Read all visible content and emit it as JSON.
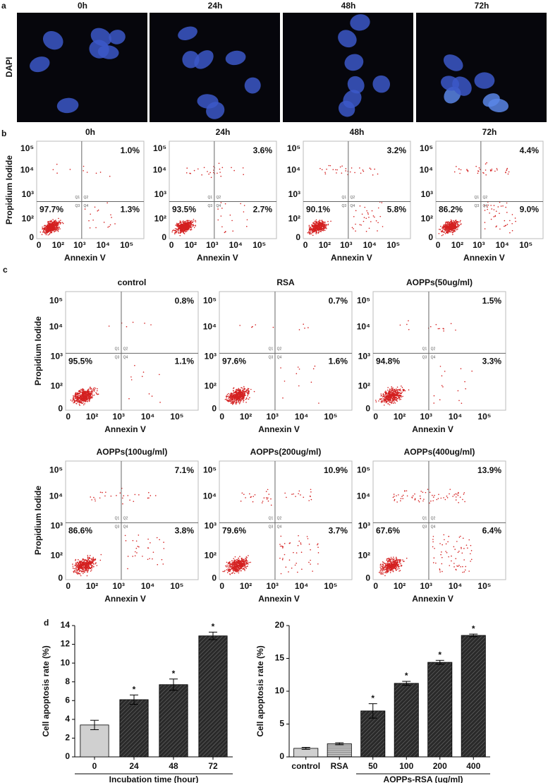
{
  "panel_labels": [
    "a",
    "b",
    "c",
    "d"
  ],
  "panel_a": {
    "stain": "DAPI",
    "timepoints": [
      "0h",
      "24h",
      "48h",
      "72h"
    ]
  },
  "panel_b": {
    "y_label": "Propidium Iodide",
    "x_label": "Annexin V",
    "y_ticks": [
      "10⁵",
      "10⁴",
      "10³",
      "10²",
      "0"
    ],
    "x_ticks": [
      "0",
      "10²",
      "10³",
      "10⁴",
      "10⁵"
    ],
    "quadrants": [
      "Q1",
      "Q2",
      "Q3",
      "Q4"
    ],
    "plots": [
      {
        "title": "0h",
        "upper_right": "1.0%",
        "lower_left": "97.7%",
        "lower_right": "1.3%"
      },
      {
        "title": "24h",
        "upper_right": "3.6%",
        "lower_left": "93.5%",
        "lower_right": "2.7%"
      },
      {
        "title": "48h",
        "upper_right": "3.2%",
        "lower_left": "90.1%",
        "lower_right": "5.8%"
      },
      {
        "title": "72h",
        "upper_right": "4.4%",
        "lower_left": "86.2%",
        "lower_right": "9.0%"
      }
    ]
  },
  "panel_c": {
    "y_label": "Propidium Iodide",
    "x_label": "Annexin V",
    "y_ticks": [
      "10⁵",
      "10⁴",
      "10³",
      "10²",
      "0"
    ],
    "x_ticks": [
      "0",
      "10²",
      "10³",
      "10⁴",
      "10⁵"
    ],
    "quadrants": [
      "Q1",
      "Q2",
      "Q3",
      "Q4"
    ],
    "plots": [
      {
        "title": "control",
        "upper_right": "0.8%",
        "lower_left": "95.5%",
        "lower_right": "1.1%"
      },
      {
        "title": "RSA",
        "upper_right": "0.7%",
        "lower_left": "97.6%",
        "lower_right": "1.6%"
      },
      {
        "title": "AOPPs(50ug/ml)",
        "upper_right": "1.5%",
        "lower_left": "94.8%",
        "lower_right": "3.3%"
      },
      {
        "title": "AOPPs(100ug/ml)",
        "upper_right": "7.1%",
        "lower_left": "86.6%",
        "lower_right": "3.8%"
      },
      {
        "title": "AOPPs(200ug/ml)",
        "upper_right": "10.9%",
        "lower_left": "79.6%",
        "lower_right": "3.7%"
      },
      {
        "title": "AOPPs(400ug/ml)",
        "upper_right": "13.9%",
        "lower_left": "67.6%",
        "lower_right": "6.4%"
      }
    ]
  },
  "chart_data": [
    {
      "type": "bar",
      "y_label": "Cell apoptosis rate (%)",
      "x_label": "Incubation time (hour)",
      "categories": [
        "0",
        "24",
        "48",
        "72"
      ],
      "values": [
        3.4,
        6.1,
        7.7,
        12.9
      ],
      "errors": [
        0.5,
        0.5,
        0.6,
        0.4
      ],
      "colors": [
        "#d0d0d0",
        "#2a2a2a",
        "#2a2a2a",
        "#2a2a2a"
      ],
      "significance": [
        null,
        "*",
        "*",
        "*"
      ],
      "ylim": [
        0,
        14
      ],
      "yticks": [
        0,
        2,
        4,
        6,
        8,
        10,
        12,
        14
      ]
    },
    {
      "type": "bar",
      "y_label": "Cell apoptosis rate (%)",
      "x_label": "AOPPs-RSA (ug/ml)",
      "categories": [
        "control",
        "RSA",
        "50",
        "100",
        "200",
        "400"
      ],
      "values": [
        1.3,
        2.0,
        7.0,
        11.2,
        14.4,
        18.5
      ],
      "errors": [
        0.15,
        0.15,
        1.1,
        0.3,
        0.3,
        0.2
      ],
      "colors": [
        "#d0d0d0",
        "#9a9a9a",
        "#2a2a2a",
        "#2a2a2a",
        "#2a2a2a",
        "#2a2a2a"
      ],
      "significance": [
        null,
        null,
        "*",
        "*",
        "*",
        "*"
      ],
      "ylim": [
        0,
        20
      ],
      "yticks": [
        0,
        5,
        10,
        15,
        20
      ]
    }
  ]
}
